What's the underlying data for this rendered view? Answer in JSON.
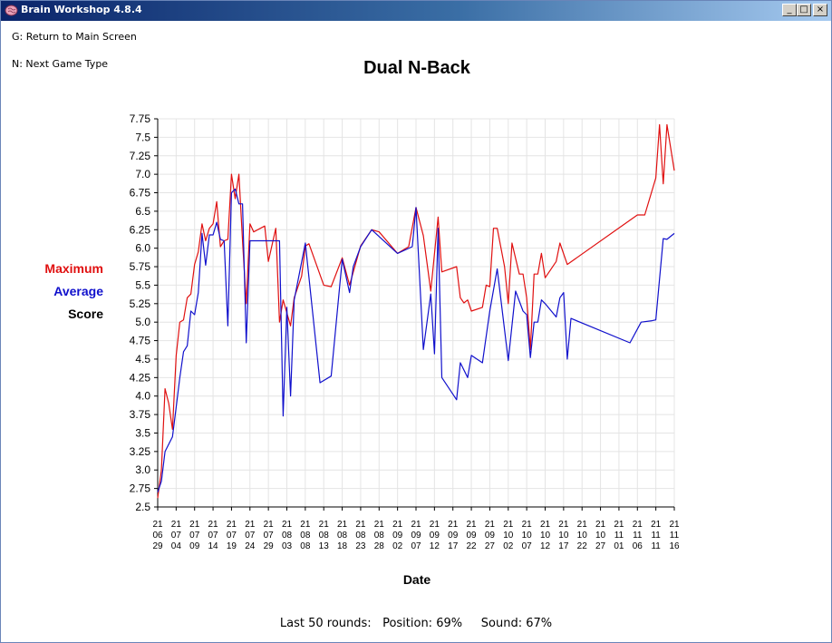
{
  "window": {
    "title": "Brain Workshop 4.8.4",
    "controls": {
      "minimize": "_",
      "maximize": "□",
      "close": "×"
    }
  },
  "hints": {
    "main_screen": "G: Return to Main Screen",
    "next_game": "N: Next Game Type"
  },
  "legend": {
    "maximum": "Maximum",
    "average": "Average",
    "score": "Score"
  },
  "status": {
    "text": "Last 50 rounds:   Position: 69%     Sound: 67%"
  },
  "colors": {
    "maximum": "#e01010",
    "average": "#1010cc",
    "grid": "#e4e4e4"
  },
  "chart_data": {
    "type": "line",
    "title": "Dual N-Back",
    "xlabel": "Date",
    "ylabel": "",
    "ylim": [
      2.5,
      7.75
    ],
    "yticks": [
      "2.5",
      "2.75",
      "3.0",
      "3.25",
      "3.5",
      "3.75",
      "4.0",
      "4.25",
      "4.5",
      "4.75",
      "5.0",
      "5.25",
      "5.5",
      "5.75",
      "6.0",
      "6.25",
      "6.5",
      "6.75",
      "7.0",
      "7.25",
      "7.5",
      "7.75"
    ],
    "xlim": [
      "2021-06-29",
      "2021-11-16"
    ],
    "xticks": [
      {
        "date": "2021-06-29",
        "label": [
          "21",
          "06",
          "29"
        ]
      },
      {
        "date": "2021-07-04",
        "label": [
          "21",
          "07",
          "04"
        ]
      },
      {
        "date": "2021-07-09",
        "label": [
          "21",
          "07",
          "09"
        ]
      },
      {
        "date": "2021-07-14",
        "label": [
          "21",
          "07",
          "14"
        ]
      },
      {
        "date": "2021-07-19",
        "label": [
          "21",
          "07",
          "19"
        ]
      },
      {
        "date": "2021-07-24",
        "label": [
          "21",
          "07",
          "24"
        ]
      },
      {
        "date": "2021-07-29",
        "label": [
          "21",
          "07",
          "29"
        ]
      },
      {
        "date": "2021-08-03",
        "label": [
          "21",
          "08",
          "03"
        ]
      },
      {
        "date": "2021-08-08",
        "label": [
          "21",
          "08",
          "08"
        ]
      },
      {
        "date": "2021-08-13",
        "label": [
          "21",
          "08",
          "13"
        ]
      },
      {
        "date": "2021-08-18",
        "label": [
          "21",
          "08",
          "18"
        ]
      },
      {
        "date": "2021-08-23",
        "label": [
          "21",
          "08",
          "23"
        ]
      },
      {
        "date": "2021-08-28",
        "label": [
          "21",
          "08",
          "28"
        ]
      },
      {
        "date": "2021-09-02",
        "label": [
          "21",
          "09",
          "02"
        ]
      },
      {
        "date": "2021-09-07",
        "label": [
          "21",
          "09",
          "07"
        ]
      },
      {
        "date": "2021-09-12",
        "label": [
          "21",
          "09",
          "12"
        ]
      },
      {
        "date": "2021-09-17",
        "label": [
          "21",
          "09",
          "17"
        ]
      },
      {
        "date": "2021-09-22",
        "label": [
          "21",
          "09",
          "22"
        ]
      },
      {
        "date": "2021-09-27",
        "label": [
          "21",
          "09",
          "27"
        ]
      },
      {
        "date": "2021-10-02",
        "label": [
          "21",
          "10",
          "02"
        ]
      },
      {
        "date": "2021-10-07",
        "label": [
          "21",
          "10",
          "07"
        ]
      },
      {
        "date": "2021-10-12",
        "label": [
          "21",
          "10",
          "12"
        ]
      },
      {
        "date": "2021-10-17",
        "label": [
          "21",
          "10",
          "17"
        ]
      },
      {
        "date": "2021-10-22",
        "label": [
          "21",
          "10",
          "22"
        ]
      },
      {
        "date": "2021-10-27",
        "label": [
          "21",
          "10",
          "27"
        ]
      },
      {
        "date": "2021-11-01",
        "label": [
          "21",
          "11",
          "01"
        ]
      },
      {
        "date": "2021-11-06",
        "label": [
          "21",
          "11",
          "06"
        ]
      },
      {
        "date": "2021-11-11",
        "label": [
          "21",
          "11",
          "11"
        ]
      },
      {
        "date": "2021-11-16",
        "label": [
          "21",
          "11",
          "16"
        ]
      }
    ],
    "grid": true,
    "series": [
      {
        "name": "Maximum",
        "color": "#e01010",
        "points": [
          [
            "2021-06-29",
            2.62
          ],
          [
            "2021-06-30",
            3.0
          ],
          [
            "2021-07-01",
            4.1
          ],
          [
            "2021-07-02",
            3.9
          ],
          [
            "2021-07-03",
            3.55
          ],
          [
            "2021-07-04",
            4.55
          ],
          [
            "2021-07-05",
            5.0
          ],
          [
            "2021-07-06",
            5.03
          ],
          [
            "2021-07-07",
            5.33
          ],
          [
            "2021-07-08",
            5.38
          ],
          [
            "2021-07-09",
            5.78
          ],
          [
            "2021-07-10",
            5.95
          ],
          [
            "2021-07-11",
            6.33
          ],
          [
            "2021-07-12",
            6.1
          ],
          [
            "2021-07-13",
            6.27
          ],
          [
            "2021-07-14",
            6.33
          ],
          [
            "2021-07-15",
            6.63
          ],
          [
            "2021-07-16",
            6.02
          ],
          [
            "2021-07-17",
            6.1
          ],
          [
            "2021-07-18",
            6.12
          ],
          [
            "2021-07-19",
            7.0
          ],
          [
            "2021-07-20",
            6.67
          ],
          [
            "2021-07-21",
            7.0
          ],
          [
            "2021-07-22",
            6.1
          ],
          [
            "2021-07-23",
            5.25
          ],
          [
            "2021-07-24",
            6.33
          ],
          [
            "2021-07-25",
            6.22
          ],
          [
            "2021-07-28",
            6.3
          ],
          [
            "2021-07-29",
            5.82
          ],
          [
            "2021-07-31",
            6.27
          ],
          [
            "2021-08-01",
            5.0
          ],
          [
            "2021-08-02",
            5.3
          ],
          [
            "2021-08-04",
            4.95
          ],
          [
            "2021-08-05",
            5.33
          ],
          [
            "2021-08-07",
            5.62
          ],
          [
            "2021-08-08",
            6.03
          ],
          [
            "2021-08-09",
            6.06
          ],
          [
            "2021-08-13",
            5.5
          ],
          [
            "2021-08-15",
            5.48
          ],
          [
            "2021-08-18",
            5.87
          ],
          [
            "2021-08-20",
            5.5
          ],
          [
            "2021-08-23",
            6.03
          ],
          [
            "2021-08-26",
            6.25
          ],
          [
            "2021-08-28",
            6.22
          ],
          [
            "2021-09-02",
            5.93
          ],
          [
            "2021-09-05",
            6.02
          ],
          [
            "2021-09-07",
            6.55
          ],
          [
            "2021-09-09",
            6.17
          ],
          [
            "2021-09-11",
            5.42
          ],
          [
            "2021-09-13",
            6.42
          ],
          [
            "2021-09-14",
            5.68
          ],
          [
            "2021-09-18",
            5.75
          ],
          [
            "2021-09-19",
            5.33
          ],
          [
            "2021-09-20",
            5.26
          ],
          [
            "2021-09-21",
            5.3
          ],
          [
            "2021-09-22",
            5.15
          ],
          [
            "2021-09-25",
            5.2
          ],
          [
            "2021-09-26",
            5.5
          ],
          [
            "2021-09-27",
            5.48
          ],
          [
            "2021-09-28",
            6.27
          ],
          [
            "2021-09-29",
            6.27
          ],
          [
            "2021-10-01",
            5.75
          ],
          [
            "2021-10-02",
            5.25
          ],
          [
            "2021-10-03",
            6.07
          ],
          [
            "2021-10-05",
            5.65
          ],
          [
            "2021-10-06",
            5.65
          ],
          [
            "2021-10-07",
            5.33
          ],
          [
            "2021-10-08",
            4.63
          ],
          [
            "2021-10-09",
            5.65
          ],
          [
            "2021-10-10",
            5.65
          ],
          [
            "2021-10-11",
            5.93
          ],
          [
            "2021-10-12",
            5.6
          ],
          [
            "2021-10-15",
            5.82
          ],
          [
            "2021-10-16",
            6.07
          ],
          [
            "2021-10-18",
            5.78
          ],
          [
            "2021-11-06",
            6.45
          ],
          [
            "2021-11-08",
            6.45
          ],
          [
            "2021-11-11",
            6.95
          ],
          [
            "2021-11-12",
            7.67
          ],
          [
            "2021-11-13",
            6.87
          ],
          [
            "2021-11-14",
            7.67
          ],
          [
            "2021-11-16",
            7.05
          ]
        ]
      },
      {
        "name": "Average",
        "color": "#1010cc",
        "points": [
          [
            "2021-06-29",
            2.7
          ],
          [
            "2021-06-30",
            2.85
          ],
          [
            "2021-07-01",
            3.25
          ],
          [
            "2021-07-03",
            3.45
          ],
          [
            "2021-07-04",
            3.85
          ],
          [
            "2021-07-05",
            4.25
          ],
          [
            "2021-07-06",
            4.6
          ],
          [
            "2021-07-07",
            4.68
          ],
          [
            "2021-07-08",
            5.15
          ],
          [
            "2021-07-09",
            5.1
          ],
          [
            "2021-07-10",
            5.4
          ],
          [
            "2021-07-11",
            6.2
          ],
          [
            "2021-07-12",
            5.77
          ],
          [
            "2021-07-13",
            6.18
          ],
          [
            "2021-07-14",
            6.18
          ],
          [
            "2021-07-15",
            6.35
          ],
          [
            "2021-07-16",
            6.12
          ],
          [
            "2021-07-17",
            6.1
          ],
          [
            "2021-07-18",
            4.95
          ],
          [
            "2021-07-19",
            6.75
          ],
          [
            "2021-07-20",
            6.8
          ],
          [
            "2021-07-21",
            6.6
          ],
          [
            "2021-07-22",
            6.6
          ],
          [
            "2021-07-23",
            4.72
          ],
          [
            "2021-07-24",
            6.1
          ],
          [
            "2021-08-01",
            6.1
          ],
          [
            "2021-08-02",
            3.73
          ],
          [
            "2021-08-03",
            5.2
          ],
          [
            "2021-08-04",
            4.0
          ],
          [
            "2021-08-05",
            5.3
          ],
          [
            "2021-08-08",
            6.07
          ],
          [
            "2021-08-12",
            4.18
          ],
          [
            "2021-08-15",
            4.27
          ],
          [
            "2021-08-18",
            5.85
          ],
          [
            "2021-08-20",
            5.4
          ],
          [
            "2021-08-21",
            5.75
          ],
          [
            "2021-08-23",
            6.02
          ],
          [
            "2021-08-26",
            6.25
          ],
          [
            "2021-09-02",
            5.93
          ],
          [
            "2021-09-06",
            6.02
          ],
          [
            "2021-09-07",
            6.55
          ],
          [
            "2021-09-09",
            4.63
          ],
          [
            "2021-09-11",
            5.38
          ],
          [
            "2021-09-12",
            4.57
          ],
          [
            "2021-09-13",
            6.27
          ],
          [
            "2021-09-14",
            4.25
          ],
          [
            "2021-09-18",
            3.95
          ],
          [
            "2021-09-19",
            4.45
          ],
          [
            "2021-09-21",
            4.25
          ],
          [
            "2021-09-22",
            4.55
          ],
          [
            "2021-09-25",
            4.45
          ],
          [
            "2021-09-27",
            5.15
          ],
          [
            "2021-09-29",
            5.72
          ],
          [
            "2021-10-02",
            4.48
          ],
          [
            "2021-10-04",
            5.42
          ],
          [
            "2021-10-06",
            5.15
          ],
          [
            "2021-10-07",
            5.1
          ],
          [
            "2021-10-08",
            4.52
          ],
          [
            "2021-10-09",
            5.0
          ],
          [
            "2021-10-10",
            5.0
          ],
          [
            "2021-10-11",
            5.3
          ],
          [
            "2021-10-12",
            5.25
          ],
          [
            "2021-10-15",
            5.07
          ],
          [
            "2021-10-16",
            5.33
          ],
          [
            "2021-10-17",
            5.4
          ],
          [
            "2021-10-18",
            4.5
          ],
          [
            "2021-10-19",
            5.05
          ],
          [
            "2021-11-04",
            4.72
          ],
          [
            "2021-11-07",
            5.0
          ],
          [
            "2021-11-10",
            5.02
          ],
          [
            "2021-11-11",
            5.03
          ],
          [
            "2021-11-13",
            6.13
          ],
          [
            "2021-11-14",
            6.12
          ],
          [
            "2021-11-16",
            6.2
          ]
        ]
      }
    ]
  }
}
